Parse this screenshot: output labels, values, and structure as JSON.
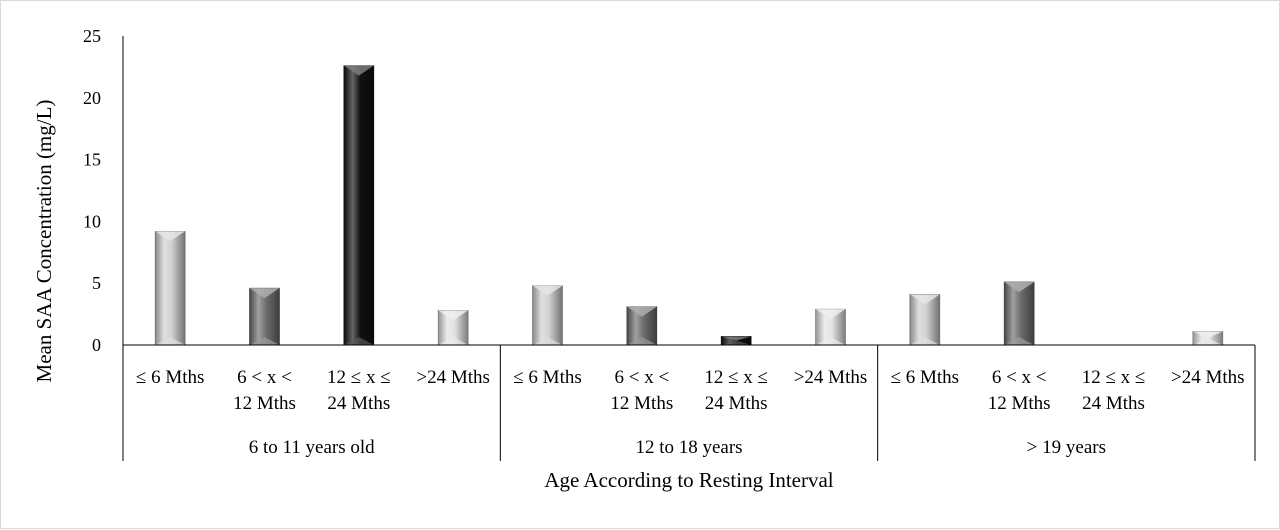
{
  "chart_data": {
    "type": "bar",
    "title": "",
    "ylabel": "Mean SAA Concentration (mg/L)",
    "xlabel": "Age According to Resting Interval",
    "ylim": [
      0,
      25
    ],
    "yticks": [
      "0",
      "5",
      "10",
      "15",
      "20",
      "25"
    ],
    "grid": false,
    "legend": "none",
    "groups": [
      {
        "label": "6 to 11 years old",
        "bars": [
          {
            "label": [
              "≤ 6 Mths"
            ],
            "value": 9.2,
            "color": "#d0d0d0"
          },
          {
            "label": [
              "6 < x <",
              "12 Mths"
            ],
            "value": 4.6,
            "color": "#6e6e6e"
          },
          {
            "label": [
              "12 ≤ x ≤",
              "24 Mths"
            ],
            "value": 22.6,
            "color": "#111111"
          },
          {
            "label": [
              ">24 Mths"
            ],
            "value": 2.8,
            "color": "#e2e2e2"
          }
        ]
      },
      {
        "label": "12 to 18 years",
        "bars": [
          {
            "label": [
              "≤ 6 Mths"
            ],
            "value": 4.8,
            "color": "#d0d0d0"
          },
          {
            "label": [
              "6 < x <",
              "12 Mths"
            ],
            "value": 3.1,
            "color": "#6e6e6e"
          },
          {
            "label": [
              "12 ≤ x ≤",
              "24 Mths"
            ],
            "value": 0.7,
            "color": "#111111"
          },
          {
            "label": [
              ">24 Mths"
            ],
            "value": 2.9,
            "color": "#e2e2e2"
          }
        ]
      },
      {
        "label": "> 19 years",
        "bars": [
          {
            "label": [
              "≤ 6 Mths"
            ],
            "value": 4.1,
            "color": "#d0d0d0"
          },
          {
            "label": [
              "6 < x <",
              "12 Mths"
            ],
            "value": 5.1,
            "color": "#6e6e6e"
          },
          {
            "label": [
              "12 ≤ x ≤",
              "24 Mths"
            ],
            "value": 0,
            "color": "#111111"
          },
          {
            "label": [
              ">24 Mths"
            ],
            "value": 1.1,
            "color": "#e2e2e2"
          }
        ]
      }
    ]
  }
}
